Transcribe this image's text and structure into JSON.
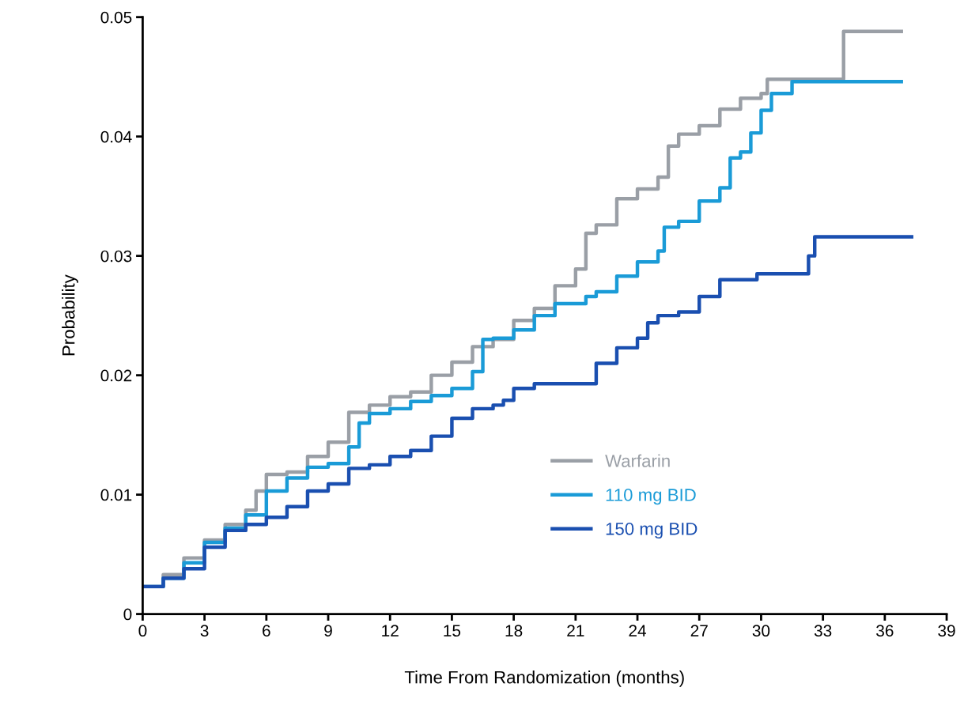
{
  "chart_data": {
    "type": "step",
    "xlabel": "Time From Randomization (months)",
    "ylabel": "Probability",
    "xlim": [
      0,
      39
    ],
    "xticks": [
      0,
      3,
      6,
      9,
      12,
      15,
      18,
      21,
      24,
      27,
      30,
      33,
      36,
      39
    ],
    "ylim": [
      0,
      0.05
    ],
    "yticks": [
      0,
      0.01,
      0.02,
      0.03,
      0.04,
      0.05
    ],
    "grid": false,
    "legend": "bottom",
    "line_style": "solid",
    "series": [
      {
        "name": "Warfarin",
        "color": "#9a9fa6",
        "x": [
          0,
          1,
          2,
          3,
          4,
          5,
          5.5,
          6,
          7,
          8,
          9,
          10,
          11,
          12,
          13,
          14,
          15,
          16,
          17,
          18,
          19,
          20,
          21,
          21.5,
          22,
          23,
          24,
          25,
          25.5,
          26,
          27,
          28,
          29,
          30,
          30.3,
          34,
          36.8
        ],
        "values": [
          0.0023,
          0.0033,
          0.0047,
          0.0062,
          0.0075,
          0.0087,
          0.0103,
          0.0117,
          0.0119,
          0.0132,
          0.0144,
          0.0169,
          0.0175,
          0.0182,
          0.0186,
          0.02,
          0.0211,
          0.0224,
          0.023,
          0.0246,
          0.0256,
          0.0275,
          0.0289,
          0.0319,
          0.0326,
          0.0348,
          0.0356,
          0.0366,
          0.0392,
          0.0402,
          0.0409,
          0.0423,
          0.0432,
          0.0436,
          0.0448,
          0.0488,
          0.0488
        ]
      },
      {
        "name": "110 mg BID",
        "color": "#1a9bd7",
        "x": [
          0,
          1,
          2,
          3,
          4,
          5,
          6,
          7,
          8,
          9,
          10,
          10.5,
          11,
          12,
          13,
          14,
          15,
          16,
          16.5,
          17,
          18,
          19,
          20,
          21,
          21.5,
          22,
          23,
          24,
          25,
          25.3,
          26,
          27,
          28,
          28.5,
          29,
          29.5,
          30,
          30.5,
          31,
          31.5,
          36.8
        ],
        "values": [
          0.0023,
          0.003,
          0.0043,
          0.006,
          0.0072,
          0.0083,
          0.0103,
          0.0114,
          0.0123,
          0.0126,
          0.014,
          0.016,
          0.0168,
          0.0172,
          0.0178,
          0.0183,
          0.0189,
          0.0203,
          0.023,
          0.0231,
          0.0238,
          0.025,
          0.026,
          0.026,
          0.0266,
          0.027,
          0.0283,
          0.0295,
          0.0304,
          0.0324,
          0.0329,
          0.0346,
          0.0357,
          0.0382,
          0.0387,
          0.0403,
          0.0422,
          0.0436,
          0.0436,
          0.0446,
          0.0446
        ]
      },
      {
        "name": "150 mg BID",
        "color": "#1a4fb0",
        "x": [
          0,
          1,
          2,
          3,
          4,
          5,
          6,
          7,
          8,
          9,
          10,
          11,
          12,
          13,
          14,
          15,
          16,
          17,
          17.5,
          18,
          19,
          20,
          21,
          22,
          23,
          24,
          24.5,
          25,
          26,
          27,
          28,
          29.8,
          32,
          32.3,
          32.6,
          37.3
        ],
        "values": [
          0.0023,
          0.003,
          0.0038,
          0.0056,
          0.007,
          0.0075,
          0.0081,
          0.009,
          0.0103,
          0.0109,
          0.0122,
          0.0125,
          0.0132,
          0.0137,
          0.0149,
          0.0164,
          0.0172,
          0.0175,
          0.0179,
          0.0189,
          0.0193,
          0.0193,
          0.0193,
          0.021,
          0.0223,
          0.0231,
          0.0244,
          0.025,
          0.0253,
          0.0266,
          0.028,
          0.0285,
          0.0285,
          0.03,
          0.0316,
          0.0316
        ]
      }
    ]
  }
}
